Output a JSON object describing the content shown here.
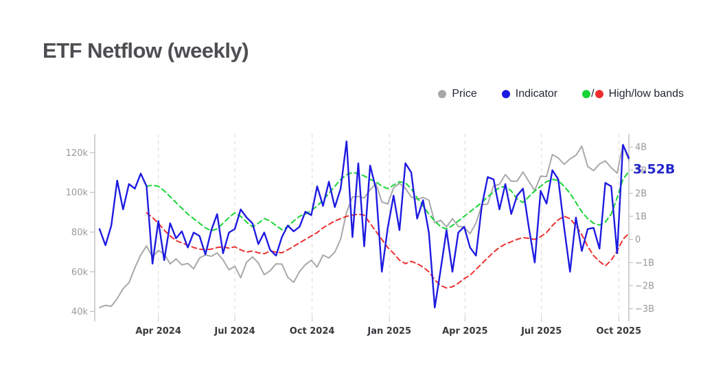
{
  "title": "ETF Netflow (weekly)",
  "legend": {
    "price_label": "Price",
    "indicator_label": "Indicator",
    "bands_label": "High/low bands",
    "bands_slash": "/"
  },
  "colors": {
    "price": "#a8a8a8",
    "indicator": "#1d1ae0",
    "high_band": "#17d434",
    "low_band": "#ee2e2e",
    "grid": "#d7d7d7",
    "axis": "#b5b5b5",
    "y_tick_text": "#98989c",
    "x_tick_text": "#38383c",
    "last_value_text": "#2326c9",
    "title_text": "#4e4e52"
  },
  "last_value_label": "3.52B",
  "chart_data": {
    "type": "line",
    "title": "ETF Netflow (weekly)",
    "grid": "vertical-dashed",
    "legend_position": "top-right",
    "x_start": "2024-01-22",
    "x_interval_days": 7,
    "x_ticks": [
      {
        "label": "Apr 2024",
        "date": "2024-04-01"
      },
      {
        "label": "Jul 2024",
        "date": "2024-07-01"
      },
      {
        "label": "Oct 2024",
        "date": "2024-10-01"
      },
      {
        "label": "Jan 2025",
        "date": "2025-01-01"
      },
      {
        "label": "Apr 2025",
        "date": "2025-04-01"
      },
      {
        "label": "Jul 2025",
        "date": "2025-07-01"
      },
      {
        "label": "Oct 2025",
        "date": "2025-10-01"
      }
    ],
    "left_axis": {
      "units": "thousand USD (price)",
      "tick_labels": [
        "40k",
        "60k",
        "80k",
        "100k",
        "120k"
      ],
      "tick_values": [
        40,
        60,
        80,
        100,
        120
      ],
      "range": [
        35,
        129.5
      ]
    },
    "right_axis": {
      "units": "billions USD (netflow)",
      "tick_labels": [
        "−3B",
        "−2B",
        "−1B",
        "0",
        "1B",
        "2B",
        "3B",
        "4B"
      ],
      "tick_values": [
        -3,
        -2,
        -1,
        0,
        1,
        2,
        3,
        4
      ],
      "range": [
        -3.55,
        4.57
      ]
    },
    "last_value": 3.52,
    "series": [
      {
        "name": "Price",
        "axis": "left",
        "style": "solid",
        "color_key": "price",
        "width": 2,
        "values": [
          42.0,
          43.1,
          42.6,
          46.5,
          51.5,
          54.5,
          62.0,
          68.5,
          73.0,
          67.5,
          70.8,
          69.0,
          64.0,
          66.5,
          63.5,
          64.2,
          61.5,
          66.9,
          68.5,
          67.8,
          69.5,
          66.0,
          61.0,
          62.8,
          57.0,
          64.8,
          67.5,
          64.5,
          58.5,
          60.5,
          64.0,
          63.9,
          57.3,
          54.7,
          60.1,
          63.6,
          65.8,
          62.4,
          68.4,
          67.0,
          69.9,
          76.5,
          90.0,
          97.7,
          98.0,
          97.2,
          101.4,
          104.5,
          95.2,
          94.2,
          102.3,
          104.6,
          102.1,
          97.7,
          96.5,
          97.5,
          96.1,
          84.7,
          86.0,
          82.6,
          86.8,
          82.9,
          82.5,
          79.2,
          84.5,
          93.7,
          94.2,
          103.3,
          104.1,
          109.0,
          105.6,
          105.7,
          110.3,
          105.5,
          101.0,
          108.2,
          108.0,
          119.1,
          117.4,
          114.2,
          116.9,
          118.7,
          123.3,
          113.1,
          111.0,
          114.3,
          115.9,
          112.5,
          109.7,
          124.0,
          116.2
        ]
      },
      {
        "name": "Indicator",
        "axis": "right",
        "style": "solid",
        "color_key": "indicator",
        "width": 2.4,
        "values": [
          0.45,
          -0.25,
          0.6,
          2.55,
          1.3,
          2.4,
          2.2,
          2.85,
          2.3,
          -1.05,
          0.8,
          -0.9,
          0.7,
          0.05,
          0.35,
          -0.35,
          0.3,
          0.15,
          -0.65,
          0.4,
          1.1,
          -0.6,
          0.3,
          0.45,
          1.3,
          0.95,
          0.7,
          -0.2,
          0.3,
          -0.45,
          -0.7,
          0.1,
          0.6,
          0.35,
          0.55,
          1.2,
          1.05,
          2.3,
          1.45,
          2.5,
          1.4,
          2.2,
          4.25,
          0.1,
          3.3,
          -0.3,
          3.2,
          2.2,
          -1.4,
          0.5,
          1.9,
          0.4,
          3.3,
          2.9,
          0.9,
          1.7,
          0.3,
          -2.95,
          -1.3,
          0.4,
          -1.4,
          0.3,
          0.55,
          -0.35,
          -0.7,
          1.45,
          2.7,
          2.6,
          1.3,
          2.4,
          1.1,
          1.9,
          2.2,
          0.5,
          -1.0,
          2.1,
          1.55,
          3.0,
          2.6,
          0.5,
          -1.4,
          0.95,
          -0.5,
          0.45,
          0.5,
          -0.4,
          2.45,
          2.3,
          -0.6,
          4.1,
          3.52
        ]
      },
      {
        "name": "High band",
        "axis": "right",
        "style": "dashed",
        "color_key": "high_band",
        "width": 2,
        "values": [
          null,
          null,
          null,
          null,
          null,
          null,
          null,
          null,
          2.3,
          2.35,
          2.3,
          2.1,
          1.85,
          1.6,
          1.35,
          1.1,
          0.9,
          0.7,
          0.5,
          0.38,
          0.45,
          0.7,
          0.95,
          1.15,
          1.0,
          0.75,
          0.55,
          0.7,
          0.9,
          0.8,
          0.6,
          0.42,
          0.55,
          0.8,
          1.0,
          1.1,
          1.25,
          1.45,
          1.7,
          2.0,
          2.3,
          2.6,
          2.8,
          2.9,
          2.85,
          2.75,
          2.6,
          2.5,
          2.3,
          2.2,
          2.35,
          2.5,
          2.45,
          2.2,
          1.8,
          1.45,
          1.1,
          0.8,
          0.55,
          0.45,
          0.6,
          0.8,
          1.0,
          1.2,
          1.4,
          1.6,
          1.85,
          2.05,
          2.25,
          2.3,
          2.1,
          1.75,
          1.6,
          1.85,
          2.1,
          2.3,
          2.5,
          2.6,
          2.55,
          2.3,
          2.0,
          1.6,
          1.2,
          0.9,
          0.7,
          0.62,
          0.75,
          1.1,
          1.8,
          2.6,
          2.95
        ]
      },
      {
        "name": "Low band",
        "axis": "right",
        "style": "dashed",
        "color_key": "low_band",
        "width": 2,
        "values": [
          null,
          null,
          null,
          null,
          null,
          null,
          null,
          null,
          1.15,
          0.95,
          0.7,
          0.4,
          0.15,
          -0.05,
          -0.15,
          -0.25,
          -0.35,
          -0.42,
          -0.45,
          -0.42,
          -0.35,
          -0.32,
          -0.38,
          -0.32,
          -0.45,
          -0.55,
          -0.5,
          -0.58,
          -0.62,
          -0.5,
          -0.55,
          -0.58,
          -0.45,
          -0.3,
          -0.15,
          0.0,
          0.15,
          0.3,
          0.5,
          0.65,
          0.8,
          0.9,
          1.0,
          1.05,
          1.1,
          1.05,
          0.7,
          0.35,
          0.0,
          -0.35,
          -0.6,
          -0.9,
          -1.05,
          -0.95,
          -1.05,
          -1.2,
          -1.4,
          -1.75,
          -2.0,
          -2.1,
          -2.05,
          -1.9,
          -1.7,
          -1.55,
          -1.3,
          -1.05,
          -0.8,
          -0.55,
          -0.35,
          -0.2,
          -0.1,
          0.0,
          0.08,
          0.05,
          0.0,
          0.12,
          0.3,
          0.6,
          0.85,
          1.0,
          0.9,
          0.6,
          0.2,
          -0.3,
          -0.7,
          -0.95,
          -1.15,
          -0.9,
          -0.5,
          0.0,
          0.27
        ]
      }
    ]
  }
}
